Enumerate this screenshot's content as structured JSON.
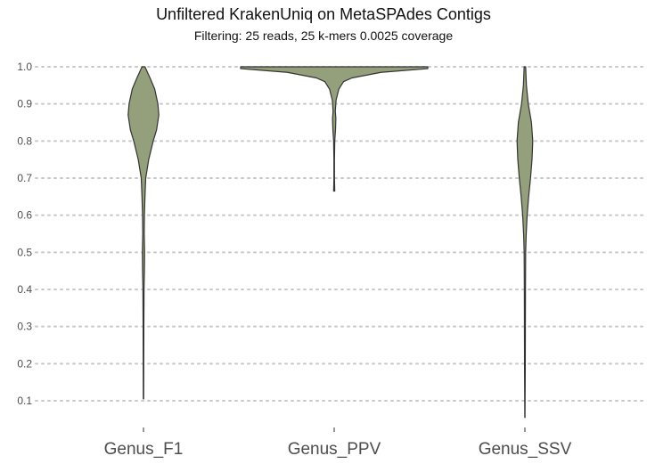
{
  "chart_data": {
    "type": "violin",
    "title": "Unfiltered KrakenUniq on MetaSPAdes Contigs",
    "subtitle": "Filtering: 25 reads, 25 k-mers 0.0025 coverage",
    "xlabel": "",
    "ylabel": "",
    "ylim": [
      0.03,
      1.0
    ],
    "yticks": [
      "0.1",
      "0.2",
      "0.3",
      "0.4",
      "0.5",
      "0.6",
      "0.7",
      "0.8",
      "0.9",
      "1.0"
    ],
    "categories": [
      "Genus_F1",
      "Genus_PPV",
      "Genus_SSV"
    ],
    "grid": "horizontal dotted",
    "fill_color": "#93a07b",
    "outline_color": "#333333",
    "grid_color": "#c8c8c8",
    "violins": [
      {
        "category": "Genus_F1",
        "min": 0.105,
        "max": 1.0,
        "density": [
          [
            0.105,
            0.01
          ],
          [
            0.2,
            0.015
          ],
          [
            0.3,
            0.02
          ],
          [
            0.4,
            0.03
          ],
          [
            0.45,
            0.05
          ],
          [
            0.5,
            0.06
          ],
          [
            0.55,
            0.04
          ],
          [
            0.6,
            0.05
          ],
          [
            0.65,
            0.08
          ],
          [
            0.7,
            0.12
          ],
          [
            0.75,
            0.28
          ],
          [
            0.8,
            0.52
          ],
          [
            0.83,
            0.7
          ],
          [
            0.87,
            0.82
          ],
          [
            0.9,
            0.77
          ],
          [
            0.94,
            0.6
          ],
          [
            0.97,
            0.35
          ],
          [
            1.0,
            0.08
          ]
        ]
      },
      {
        "category": "Genus_PPV",
        "min": 0.665,
        "max": 1.0,
        "density": [
          [
            0.665,
            0.03
          ],
          [
            0.7,
            0.015
          ],
          [
            0.75,
            0.015
          ],
          [
            0.8,
            0.03
          ],
          [
            0.83,
            0.07
          ],
          [
            0.86,
            0.09
          ],
          [
            0.88,
            0.06
          ],
          [
            0.91,
            0.1
          ],
          [
            0.94,
            0.25
          ],
          [
            0.96,
            0.5
          ],
          [
            0.97,
            0.95
          ],
          [
            0.985,
            2.5
          ],
          [
            0.995,
            5.0
          ],
          [
            1.0,
            5.0
          ]
        ]
      },
      {
        "category": "Genus_SSV",
        "min": 0.055,
        "max": 1.0,
        "density": [
          [
            0.055,
            0.005
          ],
          [
            0.2,
            0.02
          ],
          [
            0.3,
            0.025
          ],
          [
            0.4,
            0.03
          ],
          [
            0.5,
            0.04
          ],
          [
            0.55,
            0.07
          ],
          [
            0.6,
            0.12
          ],
          [
            0.65,
            0.2
          ],
          [
            0.7,
            0.3
          ],
          [
            0.75,
            0.38
          ],
          [
            0.8,
            0.42
          ],
          [
            0.85,
            0.35
          ],
          [
            0.9,
            0.18
          ],
          [
            0.95,
            0.08
          ],
          [
            1.0,
            0.04
          ]
        ]
      }
    ]
  }
}
